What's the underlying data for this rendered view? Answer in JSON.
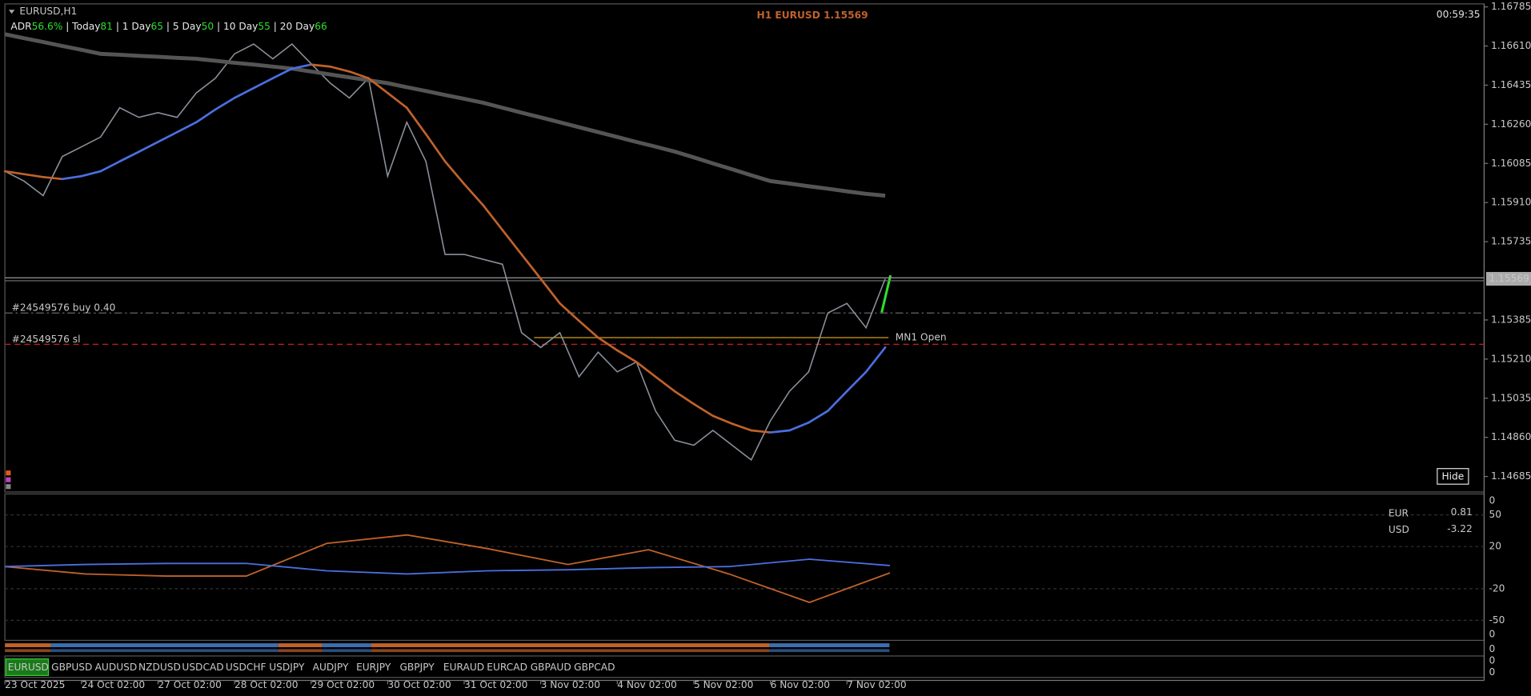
{
  "header": {
    "symbol": "EURUSD,H1",
    "title": "H1 EURUSD 1.15569",
    "timer": "00:59:35",
    "hide": "Hide"
  },
  "adr": [
    {
      "label": "ADR",
      "value": "56.6%"
    },
    {
      "label": " | Today",
      "value": "81"
    },
    {
      "label": " | 1 Day",
      "value": "65"
    },
    {
      "label": " | 5 Day",
      "value": "50"
    },
    {
      "label": " | 10 Day",
      "value": "55"
    },
    {
      "label": " |    20 Day",
      "value": "66"
    }
  ],
  "chart_data": {
    "type": "line",
    "categories": [
      "23 Oct 2025",
      null,
      null,
      null,
      "24 Oct 02:00",
      null,
      null,
      null,
      "27 Oct 02:00",
      null,
      null,
      null,
      "28 Oct 02:00",
      null,
      null,
      null,
      "29 Oct 02:00",
      null,
      null,
      null,
      "30 Oct 02:00",
      null,
      null,
      null,
      "31 Oct 02:00",
      null,
      null,
      null,
      "3 Nov 02:00",
      null,
      null,
      null,
      "4 Nov 02:00",
      null,
      null,
      null,
      "5 Nov 02:00",
      null,
      null,
      null,
      "6 Nov 02:00",
      null,
      null,
      null,
      "7 Nov 02:00",
      null,
      null
    ],
    "series": [
      {
        "color": "#8a9099",
        "values": [
          1.1605,
          1.16006,
          1.15941,
          1.16116,
          1.16159,
          1.16203,
          1.16334,
          1.16291,
          1.16312,
          1.16291,
          1.164,
          1.16466,
          1.16575,
          1.16619,
          1.16553,
          1.16619,
          1.16531,
          1.16444,
          1.16378,
          1.16466,
          1.16028,
          1.16269,
          1.16094,
          1.15678,
          1.15678,
          1.15656,
          1.15634,
          1.15328,
          1.15262,
          1.15328,
          1.15131,
          1.15241,
          1.15153,
          1.15197,
          1.14978,
          1.14847,
          1.14825,
          1.14891,
          1.14825,
          1.14759,
          1.14934,
          1.15066,
          1.15153,
          1.15416,
          1.15459,
          1.1535,
          1.15569
        ]
      },
      {
        "color": "#555555",
        "values": [
          1.16663,
          1.16645,
          1.16628,
          1.1661,
          1.16593,
          1.16575,
          1.16571,
          1.16566,
          1.16562,
          1.16557,
          1.16553,
          1.16544,
          1.16535,
          1.16527,
          1.16518,
          1.16509,
          1.16496,
          1.16483,
          1.1647,
          1.16457,
          1.16444,
          1.16426,
          1.16409,
          1.16391,
          1.16374,
          1.16356,
          1.16334,
          1.16312,
          1.16291,
          1.16269,
          1.16247,
          1.16225,
          1.16203,
          1.16181,
          1.1616,
          1.16138,
          1.16112,
          1.16085,
          1.16059,
          1.16032,
          1.16006,
          1.15995,
          1.15983,
          1.15972,
          1.1596,
          1.15949,
          1.15941
        ]
      },
      {
        "color_up": "#4a6fe0",
        "color_down": "#c0622a",
        "values": [
          1.1605,
          1.16037,
          1.16024,
          1.16015,
          1.16028,
          1.1605,
          1.16094,
          1.16137,
          1.16181,
          1.16225,
          1.16269,
          1.16326,
          1.16378,
          1.16422,
          1.16466,
          1.16509,
          1.16527,
          1.16518,
          1.16496,
          1.16466,
          1.164,
          1.16334,
          1.16216,
          1.16094,
          1.15993,
          1.15897,
          1.15787,
          1.15678,
          1.15569,
          1.15459,
          1.15381,
          1.15306,
          1.15249,
          1.15197,
          1.15131,
          1.15066,
          1.15009,
          1.14956,
          1.14921,
          1.14891,
          1.14882,
          1.14891,
          1.14926,
          1.14978,
          1.15066,
          1.15153,
          1.15262
        ]
      }
    ],
    "ylim": [
      1.1462,
      1.16794
    ],
    "yticks": [
      1.16785,
      {
        "value": 1.1661,
        "label": "1.16610"
      },
      1.16435,
      {
        "value": 1.1626,
        "label": "1.16260"
      },
      1.16085,
      {
        "value": 1.1591,
        "label": "1.15910"
      },
      1.15735,
      1.15385,
      {
        "value": 1.1521,
        "label": "1.15210"
      },
      1.15035,
      {
        "value": 1.1486,
        "label": "1.14860"
      },
      1.14685
    ],
    "price": 1.15569,
    "levels": [
      {
        "name": "#24549576 buy 0.40",
        "value": 1.15416
      },
      {
        "name": "#24549576 sl",
        "value": 1.15276
      },
      {
        "name": "MN1 Open",
        "value": 1.15306
      }
    ]
  },
  "indicator": {
    "ylim": [
      -69,
      69
    ],
    "yticks": [
      50,
      20,
      -20,
      -50
    ],
    "series": [
      {
        "color": "#c0622a",
        "values": [
          1,
          -6,
          -8,
          -8,
          23,
          31,
          18,
          3,
          17,
          -6,
          -33,
          -5
        ]
      },
      {
        "color": "#4a6fe0",
        "values": [
          1,
          3,
          4,
          4,
          -3,
          -6,
          -3,
          -2,
          0,
          1,
          8,
          2
        ]
      }
    ],
    "strip_labels": [
      "0",
      "0",
      "0",
      "0",
      "0"
    ],
    "currency": [
      {
        "name": "EUR",
        "value": 0.81,
        "color": "#4a6fe0"
      },
      {
        "name": "USD",
        "value": -3.22,
        "color": "#c0622a"
      }
    ]
  },
  "symbols": [
    "EURUSD",
    "GBPUSD",
    "AUDUSD",
    "NZDUSD",
    "USDCAD",
    "USDCHF",
    "USDJPY",
    "AUDJPY",
    "EURJPY",
    "GBPJPY",
    "EURAUD",
    "EURCAD",
    "GBPAUD",
    "GBPCAD"
  ]
}
